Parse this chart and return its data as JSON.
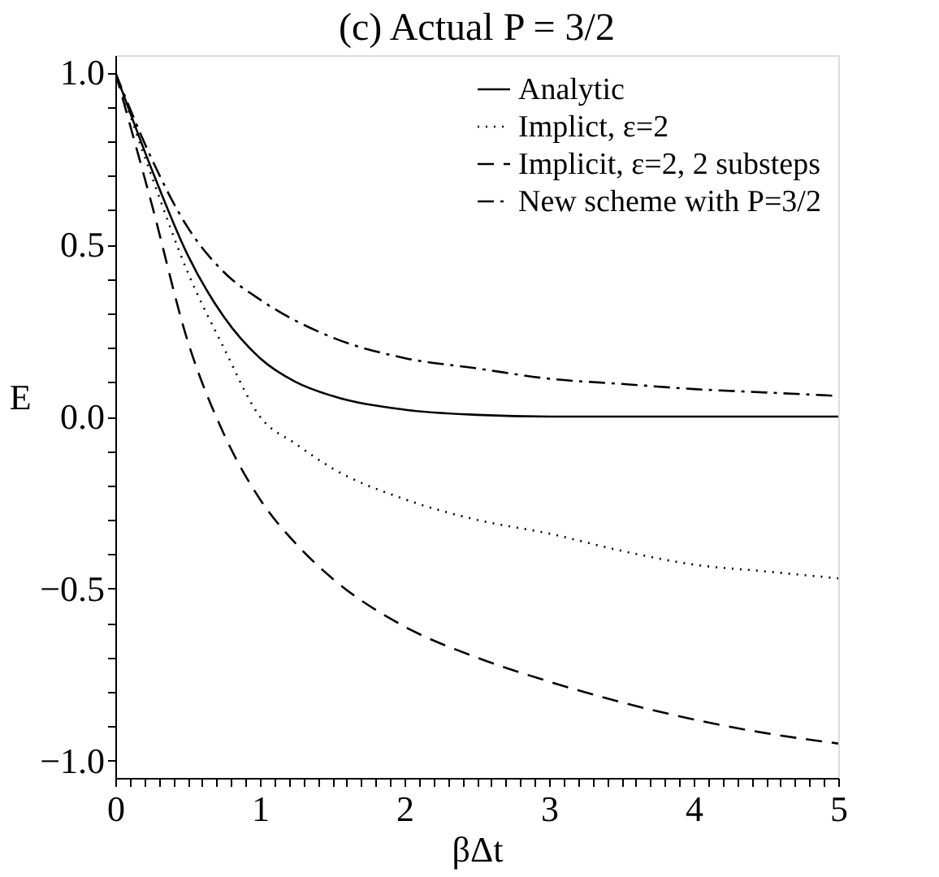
{
  "chart_data": {
    "type": "line",
    "title": "(c) Actual P = 3/2",
    "xlabel": "βΔt",
    "ylabel": "E",
    "xlim": [
      0,
      5
    ],
    "ylim": [
      -1.05,
      1.05
    ],
    "xticks": [
      0,
      {
        "value": 0.1,
        "label": null
      },
      {
        "value": 0.2,
        "label": null
      },
      {
        "value": 0.3,
        "label": null
      },
      {
        "value": 0.4,
        "label": null
      },
      {
        "value": 0.5,
        "label": null
      },
      {
        "value": 0.6,
        "label": null
      },
      {
        "value": 0.7,
        "label": null
      },
      {
        "value": 0.8,
        "label": null
      },
      {
        "value": 0.9,
        "label": null
      },
      1,
      {
        "value": 1.1,
        "label": null
      },
      {
        "value": 1.2,
        "label": null
      },
      {
        "value": 1.3,
        "label": null
      },
      {
        "value": 1.4,
        "label": null
      },
      {
        "value": 1.5,
        "label": null
      },
      {
        "value": 1.6,
        "label": null
      },
      {
        "value": 1.7,
        "label": null
      },
      {
        "value": 1.8,
        "label": null
      },
      {
        "value": 1.9,
        "label": null
      },
      2,
      {
        "value": 2.1,
        "label": null
      },
      {
        "value": 2.2,
        "label": null
      },
      {
        "value": 2.3,
        "label": null
      },
      {
        "value": 2.4,
        "label": null
      },
      {
        "value": 2.5,
        "label": null
      },
      {
        "value": 2.6,
        "label": null
      },
      {
        "value": 2.7,
        "label": null
      },
      {
        "value": 2.8,
        "label": null
      },
      {
        "value": 2.9,
        "label": null
      },
      3,
      {
        "value": 3.1,
        "label": null
      },
      {
        "value": 3.2,
        "label": null
      },
      {
        "value": 3.3,
        "label": null
      },
      {
        "value": 3.4,
        "label": null
      },
      {
        "value": 3.5,
        "label": null
      },
      {
        "value": 3.6,
        "label": null
      },
      {
        "value": 3.7,
        "label": null
      },
      {
        "value": 3.8,
        "label": null
      },
      {
        "value": 3.9,
        "label": null
      },
      4,
      {
        "value": 4.1,
        "label": null
      },
      {
        "value": 4.2,
        "label": null
      },
      {
        "value": 4.3,
        "label": null
      },
      {
        "value": 4.4,
        "label": null
      },
      {
        "value": 4.5,
        "label": null
      },
      {
        "value": 4.6,
        "label": null
      },
      {
        "value": 4.7,
        "label": null
      },
      {
        "value": 4.8,
        "label": null
      },
      {
        "value": 4.9,
        "label": null
      },
      5
    ],
    "yticks": [
      {
        "value": -1,
        "label": "−1.0"
      },
      {
        "value": -0.9,
        "label": null
      },
      {
        "value": -0.8,
        "label": null
      },
      {
        "value": -0.7,
        "label": null
      },
      {
        "value": -0.6,
        "label": null
      },
      {
        "value": -0.5,
        "label": "−0.5"
      },
      {
        "value": -0.4,
        "label": null
      },
      {
        "value": -0.3,
        "label": null
      },
      {
        "value": -0.2,
        "label": null
      },
      {
        "value": -0.1,
        "label": null
      },
      {
        "value": 0,
        "label": "0.0"
      },
      {
        "value": 0.1,
        "label": null
      },
      {
        "value": 0.2,
        "label": null
      },
      {
        "value": 0.3,
        "label": null
      },
      {
        "value": 0.4,
        "label": null
      },
      {
        "value": 0.5,
        "label": "0.5"
      },
      {
        "value": 0.6,
        "label": null
      },
      {
        "value": 0.7,
        "label": null
      },
      {
        "value": 0.8,
        "label": null
      },
      {
        "value": 0.9,
        "label": null
      },
      {
        "value": 1,
        "label": "1.0"
      }
    ],
    "legend": "top right",
    "grid": false,
    "series": [
      {
        "name": "Analytic",
        "color": "#000000",
        "line_style": "solid",
        "x": [
          0,
          0.25,
          0.5,
          0.75,
          1,
          1.25,
          1.5,
          2,
          2.5,
          3,
          5
        ],
        "values": [
          1,
          0.72,
          0.47,
          0.29,
          0.17,
          0.1,
          0.06,
          0.02,
          0.005,
          0,
          0
        ]
      },
      {
        "name": "Implict, ε=2",
        "color": "#000000",
        "line_style": "dotted",
        "x": [
          0,
          0.25,
          0.5,
          0.75,
          1,
          1.25,
          1.5,
          2,
          2.5,
          3,
          3.5,
          4,
          4.5,
          5
        ],
        "values": [
          1,
          0.7,
          0.42,
          0.2,
          0.0,
          -0.08,
          -0.15,
          -0.24,
          -0.3,
          -0.34,
          -0.39,
          -0.43,
          -0.45,
          -0.47
        ]
      },
      {
        "name": "Implicit, ε=2, 2 substeps",
        "color": "#000000",
        "line_style": "dashed",
        "x": [
          0,
          0.25,
          0.5,
          0.75,
          1,
          1.25,
          1.5,
          2,
          2.5,
          3,
          3.5,
          4,
          4.5,
          5
        ],
        "values": [
          1,
          0.62,
          0.22,
          -0.05,
          -0.24,
          -0.37,
          -0.47,
          -0.61,
          -0.7,
          -0.77,
          -0.83,
          -0.88,
          -0.92,
          -0.95
        ]
      },
      {
        "name": "New scheme with P=3/2",
        "color": "#000000",
        "line_style": "dashdot",
        "x": [
          0,
          0.25,
          0.5,
          0.75,
          1,
          1.5,
          2,
          2.5,
          3,
          3.5,
          4,
          4.5,
          5
        ],
        "values": [
          1,
          0.75,
          0.55,
          0.42,
          0.34,
          0.23,
          0.17,
          0.14,
          0.11,
          0.095,
          0.08,
          0.07,
          0.06
        ]
      }
    ]
  }
}
